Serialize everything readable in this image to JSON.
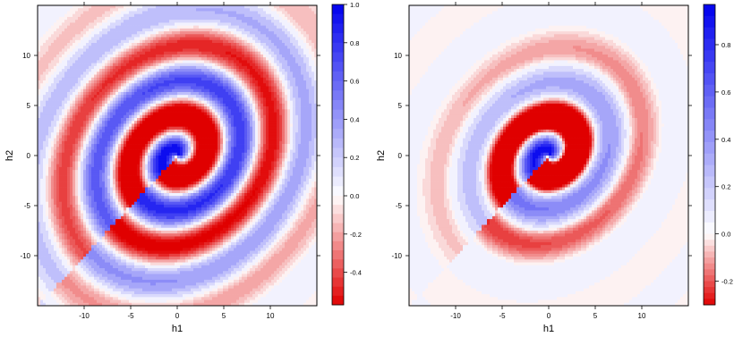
{
  "chart_data": [
    {
      "type": "heatmap",
      "title": "",
      "xlabel": "h1",
      "ylabel": "h2",
      "xlim": [
        -15,
        15
      ],
      "ylim": [
        -15,
        15
      ],
      "x_ticks": [
        -10,
        -5,
        0,
        5,
        10
      ],
      "x_tick_labels": [
        "-10",
        "-5",
        "0",
        "5",
        "10"
      ],
      "y_ticks": [
        -10,
        -5,
        0,
        5,
        10
      ],
      "y_tick_labels": [
        "-10",
        "-5",
        "0",
        "5",
        "10"
      ],
      "value_range": [
        -0.57,
        1.0
      ],
      "colorbar_ticks": [
        1.0,
        0.8,
        0.6,
        0.4,
        0.2,
        0.0,
        -0.2,
        -0.4
      ],
      "colorbar_tick_labels": [
        "1.0",
        "0.8",
        "0.6",
        "0.4",
        "0.2",
        "0.0",
        "-0.2",
        "-0.4"
      ],
      "colormap": {
        "negative": "#e00000",
        "zero": "#ffffff",
        "positive": "#0000ee"
      },
      "grid": false,
      "legend": "colorbar-right",
      "surface": "rotated oscillating correlation field; blue peak at origin, red lobes at (3,2.5) and (-3,-2.5)"
    },
    {
      "type": "heatmap",
      "title": "",
      "xlabel": "h1",
      "ylabel": "h2",
      "xlim": [
        -15,
        15
      ],
      "ylim": [
        -15,
        15
      ],
      "x_ticks": [
        -10,
        -5,
        0,
        5,
        10
      ],
      "x_tick_labels": [
        "-10",
        "-5",
        "0",
        "5",
        "10"
      ],
      "y_ticks": [
        -10,
        -5,
        0,
        5,
        10
      ],
      "y_tick_labels": [
        "-10",
        "-5",
        "0",
        "5",
        "10"
      ],
      "value_range": [
        -0.3,
        0.97
      ],
      "colorbar_ticks": [
        0.8,
        0.6,
        0.4,
        0.2,
        0.0,
        -0.2
      ],
      "colorbar_tick_labels": [
        "0.8",
        "0.6",
        "0.4",
        "0.2",
        "0.0",
        "-0.2"
      ],
      "colormap": {
        "negative": "#e00000",
        "zero": "#ffffff",
        "positive": "#0000ee"
      },
      "grid": false,
      "legend": "colorbar-right",
      "surface": "damped rotated oscillating correlation field; blue peak at origin, red lobes at (3,2.5) and (-3,-2.5)"
    }
  ]
}
